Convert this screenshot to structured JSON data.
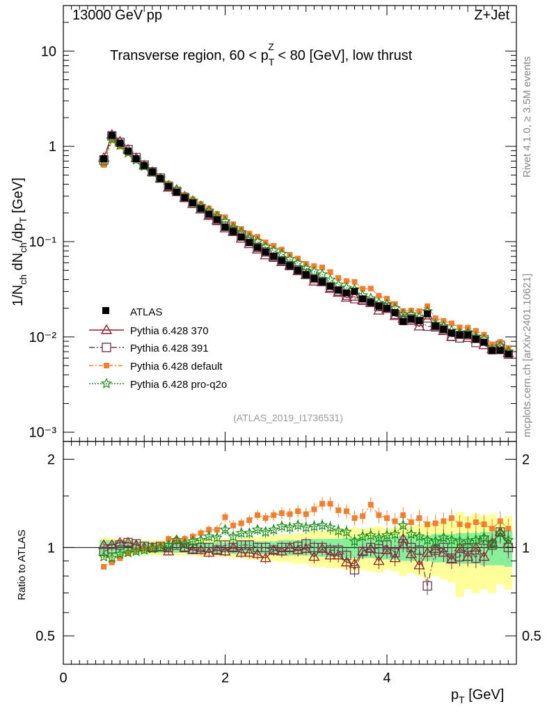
{
  "header": {
    "energy": "13000 GeV pp",
    "process": "Z+Jet",
    "title_main": "Transverse region, 60 < p",
    "title_sub": "T",
    "title_sup": "Z",
    "title_end": " < 80 [GeV], low thrust",
    "analysis_tag": "(ATLAS_2019_I1736531)",
    "rivet_label": "Rivet 4.1.0, ≥ 3.5M events",
    "mcplots_label": "mcplots.cern.ch [arXiv:2401.10621]"
  },
  "axes": {
    "ylabel_main": "1/N_ch dN_ch/dp_T [GeV]",
    "ylabel_ratio": "Ratio to ATLAS",
    "xlabel": "p_T [GeV]",
    "x_ticks": [
      "0",
      "2",
      "4"
    ],
    "y_main_ticks": [
      "10",
      "1",
      "10⁻¹",
      "10⁻²",
      "10⁻³"
    ],
    "y_ratio_ticks": [
      "2",
      "1",
      "0.5"
    ]
  },
  "legend": {
    "atlas": "ATLAS",
    "s370": "Pythia 6.428 370",
    "s391": "Pythia 6.428 391",
    "sdef": "Pythia 6.428 default",
    "sq2o": "Pythia 6.428 pro-q2o"
  },
  "chart_data": {
    "type": "scatter",
    "title": "Transverse region, 60 < pT^Z < 80 [GeV], low thrust",
    "xlabel": "pT [GeV]",
    "ylabel": "1/Nch dNch/dpT [GeV]",
    "xlim": [
      0,
      5.6
    ],
    "ylim": [
      0.0008,
      30
    ],
    "yscale": "log",
    "ratio_ylim": [
      0.4,
      2.3
    ],
    "x": [
      0.5,
      0.6,
      0.7,
      0.8,
      0.9,
      1.0,
      1.1,
      1.2,
      1.3,
      1.4,
      1.5,
      1.6,
      1.7,
      1.8,
      1.9,
      2.0,
      2.1,
      2.2,
      2.3,
      2.4,
      2.5,
      2.6,
      2.7,
      2.8,
      2.9,
      3.0,
      3.1,
      3.2,
      3.3,
      3.4,
      3.5,
      3.6,
      3.7,
      3.8,
      3.9,
      4.0,
      4.1,
      4.2,
      4.3,
      4.4,
      4.5,
      4.6,
      4.7,
      4.8,
      4.9,
      5.0,
      5.1,
      5.2,
      5.3,
      5.4,
      5.5
    ],
    "atlas_values": [
      0.74,
      1.3,
      1.08,
      0.89,
      0.74,
      0.63,
      0.54,
      0.46,
      0.38,
      0.33,
      0.29,
      0.255,
      0.222,
      0.194,
      0.17,
      0.142,
      0.128,
      0.112,
      0.098,
      0.087,
      0.078,
      0.07,
      0.063,
      0.056,
      0.05,
      0.045,
      0.041,
      0.038,
      0.034,
      0.031,
      0.029,
      0.03,
      0.025,
      0.023,
      0.021,
      0.02,
      0.018,
      0.0145,
      0.0155,
      0.0148,
      0.0175,
      0.013,
      0.012,
      0.011,
      0.0105,
      0.0105,
      0.0095,
      0.0088,
      0.0072,
      0.0072,
      0.0066
    ],
    "band_inner": [
      0.06,
      0.06,
      0.06,
      0.05,
      0.05,
      0.04,
      0.04,
      0.04,
      0.04,
      0.04,
      0.04,
      0.04,
      0.04,
      0.04,
      0.04,
      0.04,
      0.05,
      0.05,
      0.05,
      0.05,
      0.05,
      0.05,
      0.06,
      0.06,
      0.06,
      0.06,
      0.07,
      0.07,
      0.07,
      0.07,
      0.08,
      0.08,
      0.08,
      0.08,
      0.09,
      0.09,
      0.09,
      0.1,
      0.1,
      0.1,
      0.1,
      0.11,
      0.11,
      0.11,
      0.12,
      0.12,
      0.12,
      0.13,
      0.13,
      0.13,
      0.14
    ],
    "band_outer": [
      0.08,
      0.08,
      0.07,
      0.07,
      0.06,
      0.06,
      0.06,
      0.06,
      0.06,
      0.06,
      0.06,
      0.06,
      0.07,
      0.07,
      0.07,
      0.07,
      0.08,
      0.08,
      0.09,
      0.09,
      0.1,
      0.1,
      0.11,
      0.11,
      0.12,
      0.12,
      0.14,
      0.14,
      0.15,
      0.15,
      0.16,
      0.17,
      0.16,
      0.17,
      0.18,
      0.16,
      0.17,
      0.2,
      0.18,
      0.2,
      0.22,
      0.2,
      0.22,
      0.24,
      0.32,
      0.28,
      0.3,
      0.28,
      0.3,
      0.25,
      0.28
    ],
    "series": [
      {
        "name": "Pythia 6.428 370",
        "ratio": [
          1.02,
          1.02,
          1.04,
          1.04,
          1.02,
          1.0,
          1.0,
          1.0,
          0.97,
          1.06,
          1.0,
          0.98,
          0.98,
          0.96,
          0.98,
          0.97,
          1.0,
          0.96,
          0.96,
          0.95,
          0.92,
          0.98,
          0.97,
          1.0,
          0.98,
          0.99,
          0.93,
          0.99,
          0.94,
          0.94,
          0.89,
          0.88,
          0.97,
          0.99,
          0.9,
          0.98,
          0.92,
          1.07,
          0.95,
          0.87,
          0.96,
          0.99,
          0.96,
          0.91,
          1.0,
          0.93,
          1.0,
          0.93,
          1.04,
          1.13,
          1.03
        ]
      },
      {
        "name": "Pythia 6.428 391",
        "ratio": [
          0.97,
          0.99,
          1.02,
          1.04,
          1.03,
          1.01,
          1.0,
          1.01,
          1.0,
          1.02,
          1.0,
          0.99,
          1.0,
          1.0,
          0.98,
          1.02,
          1.0,
          1.02,
          1.02,
          1.0,
          1.0,
          0.98,
          1.0,
          1.0,
          1.01,
          1.03,
          1.0,
          1.0,
          0.98,
          0.98,
          0.94,
          0.84,
          0.97,
          1.0,
          0.99,
          1.02,
          0.96,
          1.03,
          1.0,
          0.98,
          0.74,
          0.98,
          1.0,
          0.92,
          0.93,
          1.0,
          0.92,
          1.06,
          1.02,
          1.13,
          1.0
        ]
      },
      {
        "name": "Pythia 6.428 default",
        "ratio": [
          0.86,
          0.89,
          0.92,
          0.96,
          0.98,
          0.99,
          1.0,
          1.02,
          1.07,
          1.06,
          1.07,
          1.09,
          1.12,
          1.15,
          1.15,
          1.27,
          1.19,
          1.21,
          1.24,
          1.29,
          1.26,
          1.29,
          1.31,
          1.3,
          1.33,
          1.3,
          1.35,
          1.41,
          1.41,
          1.34,
          1.33,
          1.26,
          1.28,
          1.4,
          1.29,
          1.26,
          1.23,
          1.29,
          1.22,
          1.26,
          1.2,
          1.21,
          1.23,
          1.26,
          1.2,
          1.19,
          1.22,
          1.2,
          1.16,
          1.23,
          1.16
        ]
      },
      {
        "name": "Pythia 6.428 pro-q2o",
        "ratio": [
          0.93,
          0.92,
          0.95,
          0.96,
          0.97,
          0.98,
          0.99,
          1.0,
          1.02,
          1.06,
          1.03,
          1.05,
          1.06,
          1.09,
          1.08,
          1.15,
          1.09,
          1.12,
          1.12,
          1.15,
          1.13,
          1.15,
          1.18,
          1.17,
          1.19,
          1.17,
          1.18,
          1.19,
          1.17,
          1.14,
          1.13,
          1.05,
          1.09,
          1.1,
          1.08,
          1.1,
          1.11,
          1.19,
          1.11,
          1.09,
          1.06,
          1.05,
          1.08,
          1.06,
          1.05,
          1.05,
          1.06,
          1.08,
          1.03,
          1.12,
          1.06
        ]
      }
    ],
    "colors": {
      "atlas": "#000000",
      "s370": "#8c1c2c",
      "s391": "#6b3a50",
      "sdef": "#f08030",
      "sq2o": "#1a8a1a",
      "band_inner": "#88ee99",
      "band_outer": "#ffff99"
    }
  }
}
